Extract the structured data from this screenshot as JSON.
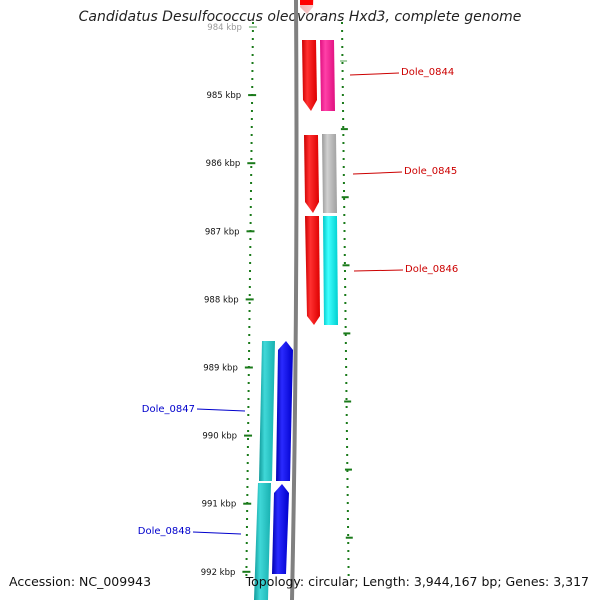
{
  "title": "Candidatus Desulfococcus oleovorans Hxd3, complete genome",
  "accession": "Accession: NC_009943",
  "topology": "Topology: circular; Length: 3,944,167 bp; Genes: 3,317",
  "axis_ticks": [
    {
      "label": "984 kbp",
      "faded": true
    },
    {
      "label": "985 kbp"
    },
    {
      "label": "986 kbp"
    },
    {
      "label": "987 kbp"
    },
    {
      "label": "988 kbp"
    },
    {
      "label": "989 kbp"
    },
    {
      "label": "990 kbp"
    },
    {
      "label": "991 kbp"
    },
    {
      "label": "992 kbp"
    }
  ],
  "genes": [
    {
      "label": "Dole_0844",
      "strand": "forward",
      "color": "#ff1493"
    },
    {
      "label": "Dole_0845",
      "strand": "forward",
      "color": "#b0b0b0"
    },
    {
      "label": "Dole_0846",
      "strand": "forward",
      "color": "#00e5e5"
    },
    {
      "label": "Dole_0847",
      "strand": "reverse",
      "color": "#20c0c0"
    },
    {
      "label": "Dole_0848",
      "strand": "reverse",
      "color": "#20c0c0"
    }
  ],
  "colors": {
    "forward_cds": "#ff0000",
    "reverse_cds": "#0000ff",
    "forward_label": "#cc0000",
    "reverse_label": "#0000cc",
    "ticks": "#1a7a1a",
    "backbone": "#808080"
  }
}
